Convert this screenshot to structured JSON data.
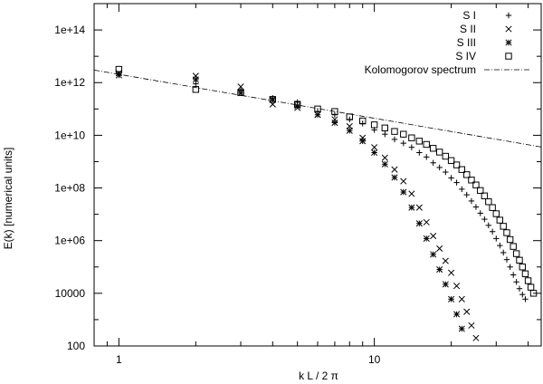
{
  "chart_data": {
    "type": "scatter",
    "xlabel": "k L / 2 π",
    "ylabel": "E(k) [numerical units]",
    "xscale": "log",
    "yscale": "log",
    "xlim": [
      0.8,
      45
    ],
    "ylim": [
      100,
      1000000000000000.0
    ],
    "x_ticks": [
      {
        "value": 1,
        "label": "1"
      },
      {
        "value": 10,
        "label": "10"
      }
    ],
    "y_ticks": [
      {
        "value": 100,
        "label": "100"
      },
      {
        "value": 10000,
        "label": "10000"
      },
      {
        "value": 1000000,
        "label": "1e+06"
      },
      {
        "value": 100000000,
        "label": "1e+08"
      },
      {
        "value": 10000000000,
        "label": "1e+10"
      },
      {
        "value": 1000000000000,
        "label": "1e+12"
      },
      {
        "value": 100000000000000,
        "label": "1e+14"
      }
    ],
    "grid": false,
    "legend_position": "top-right",
    "series": [
      {
        "name": "S I",
        "marker": "plus",
        "points": [
          [
            1,
            2200000000000.0
          ],
          [
            2,
            900000000000.0
          ],
          [
            3,
            500000000000.0
          ],
          [
            4,
            260000000000.0
          ],
          [
            5,
            180000000000.0
          ],
          [
            6,
            80000000000.0
          ],
          [
            7,
            60000000000.0
          ],
          [
            8,
            40000000000.0
          ],
          [
            9,
            28000000000.0
          ],
          [
            10,
            16000000000.0
          ],
          [
            11,
            11000000000.0
          ],
          [
            12,
            7000000000.0
          ],
          [
            13,
            5000000000.0
          ],
          [
            14,
            3500000000.0
          ],
          [
            15,
            2200000000.0
          ],
          [
            16,
            1500000000.0
          ],
          [
            17,
            900000000.0
          ],
          [
            18,
            600000000.0
          ],
          [
            19,
            400000000.0
          ],
          [
            20,
            240000000.0
          ],
          [
            21,
            160000000.0
          ],
          [
            22,
            90000000.0
          ],
          [
            23,
            55000000.0
          ],
          [
            24,
            32000000.0
          ],
          [
            25,
            19000000.0
          ],
          [
            26,
            11000000.0
          ],
          [
            27,
            6500000.0
          ],
          [
            28,
            3800000.0
          ],
          [
            29,
            2200000.0
          ],
          [
            30,
            1200000.0
          ],
          [
            31,
            650000.0
          ],
          [
            32,
            350000.0
          ],
          [
            33,
            190000.0
          ],
          [
            34,
            100000.0
          ],
          [
            35,
            50000.0
          ],
          [
            36,
            27000.0
          ],
          [
            37,
            15000.0
          ],
          [
            38,
            9000.0
          ],
          [
            39,
            6000.0
          ]
        ]
      },
      {
        "name": "S II",
        "marker": "cross",
        "points": [
          [
            1,
            2300000000000.0
          ],
          [
            2,
            1800000000000.0
          ],
          [
            3,
            700000000000.0
          ],
          [
            4,
            150000000000.0
          ],
          [
            5,
            110000000000.0
          ],
          [
            6,
            60000000000.0
          ],
          [
            7,
            40000000000.0
          ],
          [
            8,
            22000000000.0
          ],
          [
            9,
            8000000000.0
          ],
          [
            10,
            3500000000.0
          ],
          [
            11,
            1400000000.0
          ],
          [
            12,
            500000000.0
          ],
          [
            13,
            180000000.0
          ],
          [
            14,
            60000000.0
          ],
          [
            15,
            18000000.0
          ],
          [
            16,
            5000000.0
          ],
          [
            17,
            1500000.0
          ],
          [
            18,
            500000.0
          ],
          [
            19,
            170000.0
          ],
          [
            20,
            60000.0
          ],
          [
            21,
            19000.0
          ],
          [
            22,
            6000.0
          ],
          [
            23,
            2000.0
          ],
          [
            24,
            600
          ],
          [
            25,
            200
          ]
        ]
      },
      {
        "name": "S III",
        "marker": "star",
        "points": [
          [
            1,
            1900000000000.0
          ],
          [
            2,
            1300000000000.0
          ],
          [
            3,
            400000000000.0
          ],
          [
            4,
            230000000000.0
          ],
          [
            5,
            130000000000.0
          ],
          [
            6,
            60000000000.0
          ],
          [
            7,
            30000000000.0
          ],
          [
            8,
            15000000000.0
          ],
          [
            9,
            6000000000.0
          ],
          [
            10,
            2200000000.0
          ],
          [
            11,
            800000000.0
          ],
          [
            12,
            250000000.0
          ],
          [
            13,
            70000000.0
          ],
          [
            14,
            18000000.0
          ],
          [
            15,
            4500000.0
          ],
          [
            16,
            1200000.0
          ],
          [
            17,
            300000.0
          ],
          [
            18,
            80000.0
          ],
          [
            19,
            22000.0
          ],
          [
            20,
            6000.0
          ],
          [
            21,
            1600.0
          ],
          [
            22,
            450
          ]
        ]
      },
      {
        "name": "S IV",
        "marker": "square",
        "points": [
          [
            1,
            3200000000000.0
          ],
          [
            2,
            550000000000.0
          ],
          [
            3,
            420000000000.0
          ],
          [
            4,
            230000000000.0
          ],
          [
            5,
            150000000000.0
          ],
          [
            6,
            100000000000.0
          ],
          [
            7,
            80000000000.0
          ],
          [
            8,
            50000000000.0
          ],
          [
            9,
            35000000000.0
          ],
          [
            10,
            25000000000.0
          ],
          [
            11,
            19000000000.0
          ],
          [
            12,
            14000000000.0
          ],
          [
            13,
            11000000000.0
          ],
          [
            14,
            8000000000.0
          ],
          [
            15,
            6000000000.0
          ],
          [
            16,
            4500000000.0
          ],
          [
            17,
            3200000000.0
          ],
          [
            18,
            2300000000.0
          ],
          [
            19,
            1600000000.0
          ],
          [
            20,
            1100000000.0
          ],
          [
            21,
            750000000.0
          ],
          [
            22,
            500000000.0
          ],
          [
            23,
            320000000.0
          ],
          [
            24,
            200000000.0
          ],
          [
            25,
            130000000.0
          ],
          [
            26,
            80000000.0
          ],
          [
            27,
            50000000.0
          ],
          [
            28,
            30000000.0
          ],
          [
            29,
            18000000.0
          ],
          [
            30,
            10500000.0
          ],
          [
            31,
            6000000.0
          ],
          [
            32,
            3500000.0
          ],
          [
            33,
            2000000.0
          ],
          [
            34,
            1100000.0
          ],
          [
            35,
            600000.0
          ],
          [
            36,
            320000.0
          ],
          [
            37,
            180000.0
          ],
          [
            38,
            100000.0
          ],
          [
            39,
            55000.0
          ],
          [
            40,
            30000.0
          ],
          [
            41,
            17000.0
          ],
          [
            42,
            10000.0
          ]
        ]
      },
      {
        "name": "Kolomogorov spectrum",
        "marker": "line",
        "style": "dash-dot",
        "points": [
          [
            0.8,
            3000000000000.0
          ],
          [
            45,
            3600000000.0
          ]
        ]
      }
    ]
  }
}
